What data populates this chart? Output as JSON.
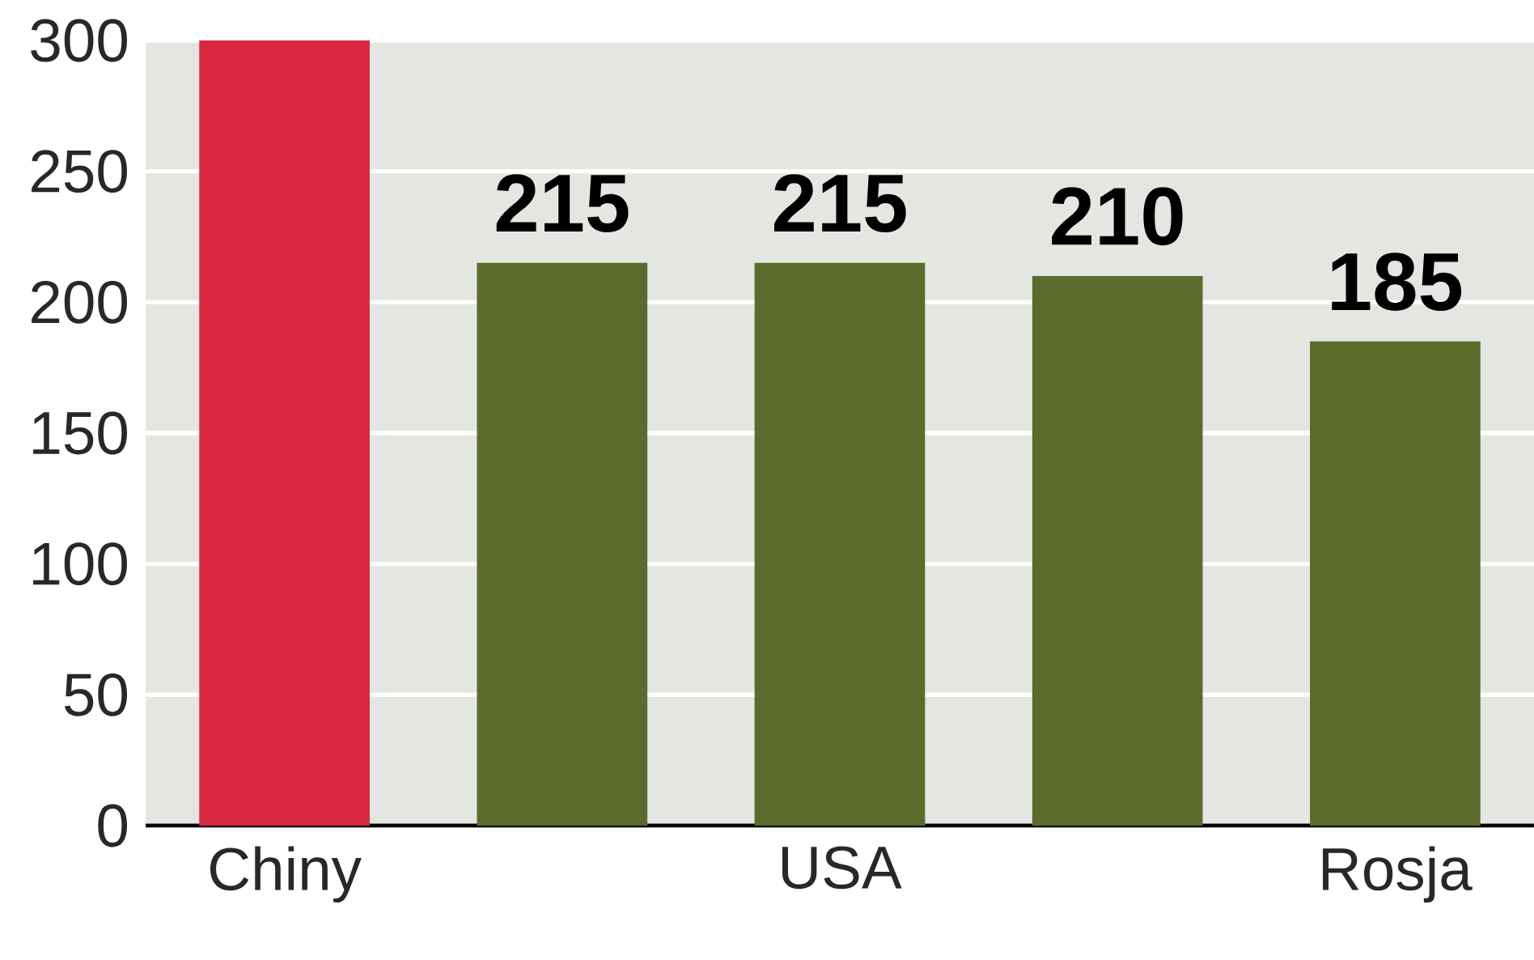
{
  "chart_data": {
    "type": "bar",
    "categories": [
      "Chiny",
      null,
      "USA",
      null,
      "Rosja"
    ],
    "values": [
      300,
      215,
      215,
      210,
      185
    ],
    "colors": [
      "#d8283f",
      "#5b6b2c",
      "#5b6b2c",
      "#5b6b2c",
      "#5b6b2c"
    ],
    "value_labels": [
      null,
      "215",
      "215",
      "210",
      "185"
    ],
    "ylim": [
      0,
      300
    ],
    "yticks": [
      0,
      50,
      100,
      150,
      200,
      250,
      300
    ],
    "grid": "y"
  }
}
